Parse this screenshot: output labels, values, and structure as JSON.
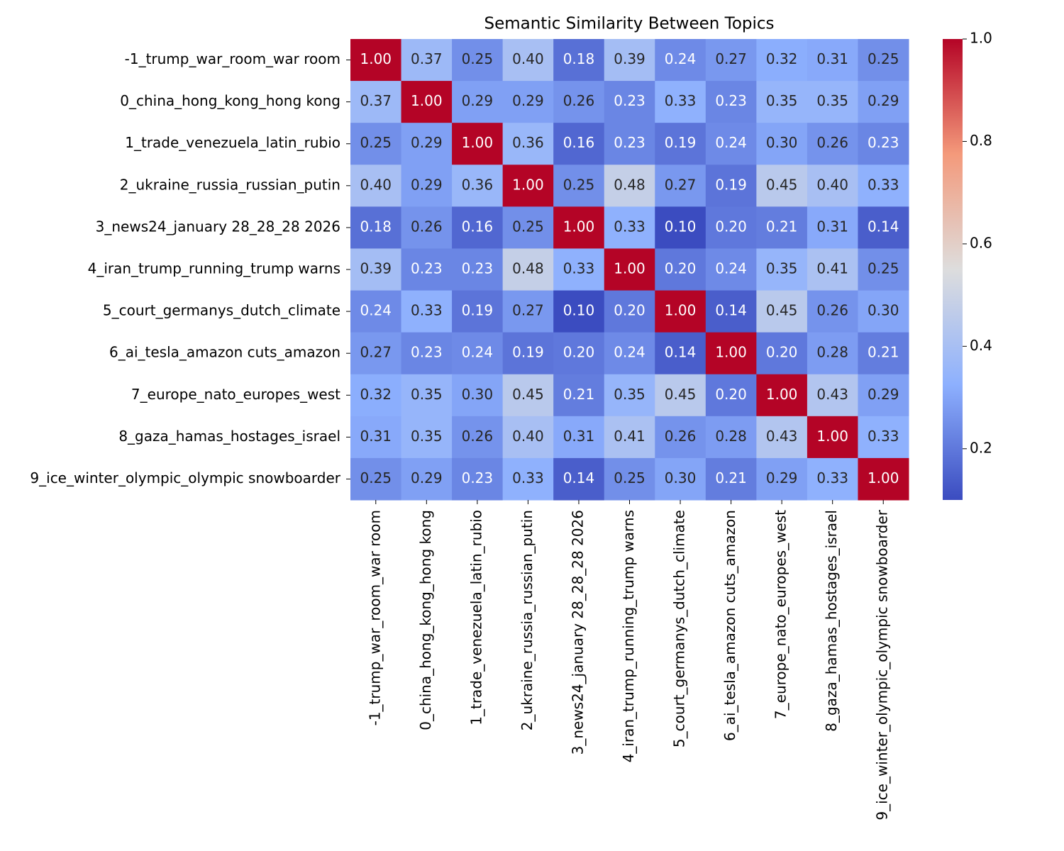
{
  "chart_data": {
    "type": "heatmap",
    "title": "Semantic Similarity Between Topics",
    "categories": [
      "-1_trump_war_room_war room",
      "0_china_hong_kong_hong kong",
      "1_trade_venezuela_latin_rubio",
      "2_ukraine_russia_russian_putin",
      "3_news24_january 28_28_28 2026",
      "4_iran_trump_running_trump warns",
      "5_court_germanys_dutch_climate",
      "6_ai_tesla_amazon cuts_amazon",
      "7_europe_nato_europes_west",
      "8_gaza_hamas_hostages_israel",
      "9_ice_winter_olympic_olympic snowboarder"
    ],
    "values": [
      [
        1.0,
        0.37,
        0.25,
        0.4,
        0.18,
        0.39,
        0.24,
        0.27,
        0.32,
        0.31,
        0.25
      ],
      [
        0.37,
        1.0,
        0.29,
        0.29,
        0.26,
        0.23,
        0.33,
        0.23,
        0.35,
        0.35,
        0.29
      ],
      [
        0.25,
        0.29,
        1.0,
        0.36,
        0.16,
        0.23,
        0.19,
        0.24,
        0.3,
        0.26,
        0.23
      ],
      [
        0.4,
        0.29,
        0.36,
        1.0,
        0.25,
        0.48,
        0.27,
        0.19,
        0.45,
        0.4,
        0.33
      ],
      [
        0.18,
        0.26,
        0.16,
        0.25,
        1.0,
        0.33,
        0.1,
        0.2,
        0.21,
        0.31,
        0.14
      ],
      [
        0.39,
        0.23,
        0.23,
        0.48,
        0.33,
        1.0,
        0.2,
        0.24,
        0.35,
        0.41,
        0.25
      ],
      [
        0.24,
        0.33,
        0.19,
        0.27,
        0.1,
        0.2,
        1.0,
        0.14,
        0.45,
        0.26,
        0.3
      ],
      [
        0.27,
        0.23,
        0.24,
        0.19,
        0.2,
        0.24,
        0.14,
        1.0,
        0.2,
        0.28,
        0.21
      ],
      [
        0.32,
        0.35,
        0.3,
        0.45,
        0.21,
        0.35,
        0.45,
        0.2,
        1.0,
        0.43,
        0.29
      ],
      [
        0.31,
        0.35,
        0.26,
        0.4,
        0.31,
        0.41,
        0.26,
        0.28,
        0.43,
        1.0,
        0.33
      ],
      [
        0.25,
        0.29,
        0.23,
        0.33,
        0.14,
        0.25,
        0.3,
        0.21,
        0.29,
        0.33,
        1.0
      ]
    ],
    "value_labels": [
      [
        "1.00",
        "0.37",
        "0.25",
        "0.40",
        "0.18",
        "0.39",
        "0.24",
        "0.27",
        "0.32",
        "0.31",
        "0.25"
      ],
      [
        "0.37",
        "1.00",
        "0.29",
        "0.29",
        "0.26",
        "0.23",
        "0.33",
        "0.23",
        "0.35",
        "0.35",
        "0.29"
      ],
      [
        "0.25",
        "0.29",
        "1.00",
        "0.36",
        "0.16",
        "0.23",
        "0.19",
        "0.24",
        "0.30",
        "0.26",
        "0.23"
      ],
      [
        "0.40",
        "0.29",
        "0.36",
        "1.00",
        "0.25",
        "0.48",
        "0.27",
        "0.19",
        "0.45",
        "0.40",
        "0.33"
      ],
      [
        "0.18",
        "0.26",
        "0.16",
        "0.25",
        "1.00",
        "0.33",
        "0.10",
        "0.20",
        "0.21",
        "0.31",
        "0.14"
      ],
      [
        "0.39",
        "0.23",
        "0.23",
        "0.48",
        "0.33",
        "1.00",
        "0.20",
        "0.24",
        "0.35",
        "0.41",
        "0.25"
      ],
      [
        "0.24",
        "0.33",
        "0.19",
        "0.27",
        "0.10",
        "0.20",
        "1.00",
        "0.14",
        "0.45",
        "0.26",
        "0.30"
      ],
      [
        "0.27",
        "0.23",
        "0.24",
        "0.19",
        "0.20",
        "0.24",
        "0.14",
        "1.00",
        "0.20",
        "0.28",
        "0.21"
      ],
      [
        "0.32",
        "0.35",
        "0.30",
        "0.45",
        "0.21",
        "0.35",
        "0.45",
        "0.20",
        "1.00",
        "0.43",
        "0.29"
      ],
      [
        "0.31",
        "0.35",
        "0.26",
        "0.40",
        "0.31",
        "0.41",
        "0.26",
        "0.28",
        "0.43",
        "1.00",
        "0.33"
      ],
      [
        "0.25",
        "0.29",
        "0.23",
        "0.33",
        "0.14",
        "0.25",
        "0.30",
        "0.21",
        "0.29",
        "0.33",
        "1.00"
      ]
    ],
    "colors": [
      "#3b4cc0",
      "#8db0fe",
      "#dddddd",
      "#f49a7b",
      "#b40426"
    ],
    "ylim": [
      0.1,
      1
    ],
    "yticks": [
      0.2,
      0.4,
      0.6,
      0.8,
      {
        "value": 1,
        "label": "1.0"
      }
    ]
  }
}
